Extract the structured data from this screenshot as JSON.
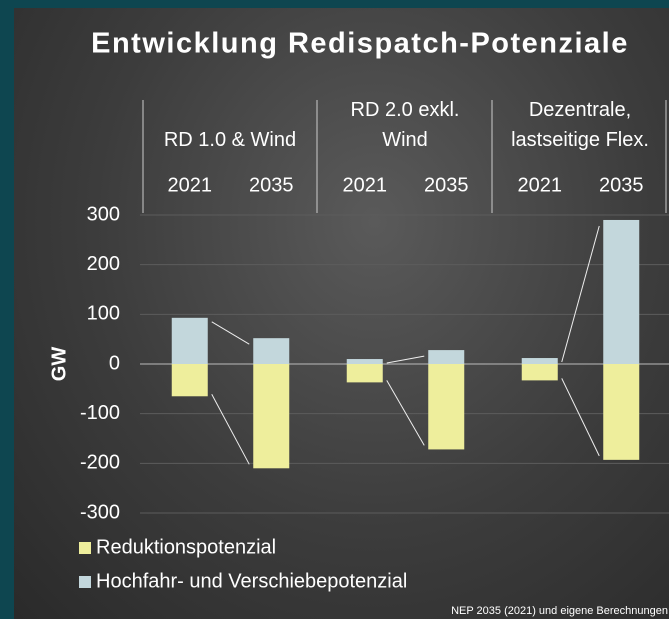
{
  "chart_data": {
    "type": "bar",
    "stacked": true,
    "title": "Entwicklung Redispatch-Potenziale",
    "y_label": "GW",
    "groups": [
      "RD 1.0 & Wind",
      "RD 2.0 exkl.\nWind",
      "Dezentrale,\nlastseitige Flex."
    ],
    "categories": [
      "2021",
      "2035",
      "2021",
      "2035",
      "2021",
      "2035"
    ],
    "series": [
      {
        "name": "Reduktionspotenzial",
        "color": "#eeee9c",
        "values": [
          -65,
          -210,
          -37,
          -172,
          -33,
          -193
        ]
      },
      {
        "name": "Hochfahr- und Verschiebepotenzial",
        "color": "#c3d7dc",
        "values": [
          93,
          52,
          10,
          28,
          12,
          290
        ]
      }
    ],
    "ylim": [
      -300,
      300
    ],
    "yticks": [
      -300,
      -200,
      -100,
      0,
      100,
      200,
      300
    ],
    "grid": true,
    "source": "NEP 2035 (2021) und eigene Berechnungen"
  }
}
